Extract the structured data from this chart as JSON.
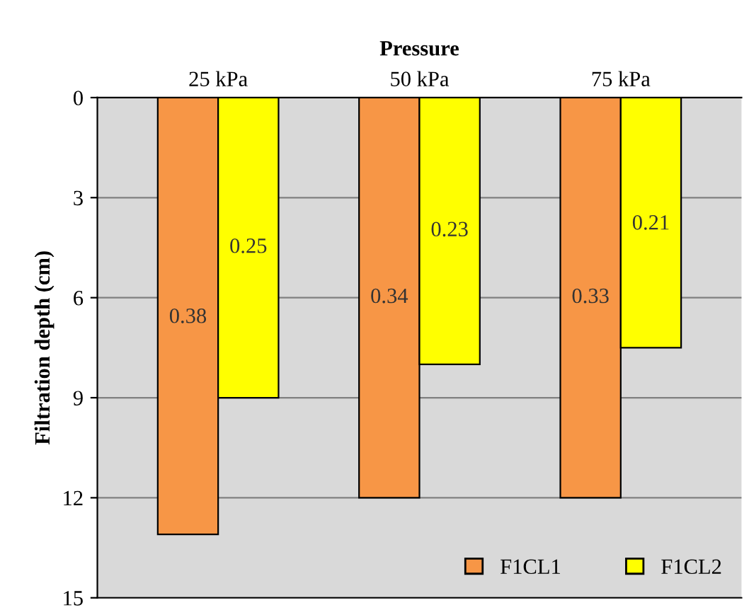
{
  "chart_data": {
    "type": "bar",
    "xlabel": "Pressure",
    "ylabel": "Filtration depth (cm)",
    "categories": [
      "25 kPa",
      "50 kPa",
      "75 kPa"
    ],
    "series": [
      {
        "name": "F1CL1",
        "color": "#f79646",
        "values": [
          13.1,
          12,
          12
        ]
      },
      {
        "name": "F1CL2",
        "color": "#ffff00",
        "values": [
          9,
          8,
          7.5
        ]
      }
    ],
    "annotations": [
      {
        "text": "0.38",
        "x": "25 kPa",
        "y": 6.6
      },
      {
        "text": "0.25",
        "x": "25 kPa",
        "y": 4.5
      },
      {
        "text": "0.34",
        "x": "50 kPa",
        "y": 6
      },
      {
        "text": "0.23",
        "x": "50 kPa",
        "y": 4
      },
      {
        "text": "0.33",
        "x": "75 kPa",
        "y": 6
      },
      {
        "text": "0.21",
        "x": "75 kPa",
        "y": 3.8
      }
    ],
    "ylim": [
      15,
      0
    ],
    "yticks": [
      0,
      3,
      6,
      9,
      12,
      15
    ],
    "grid": "y",
    "legend": "bottom right"
  }
}
